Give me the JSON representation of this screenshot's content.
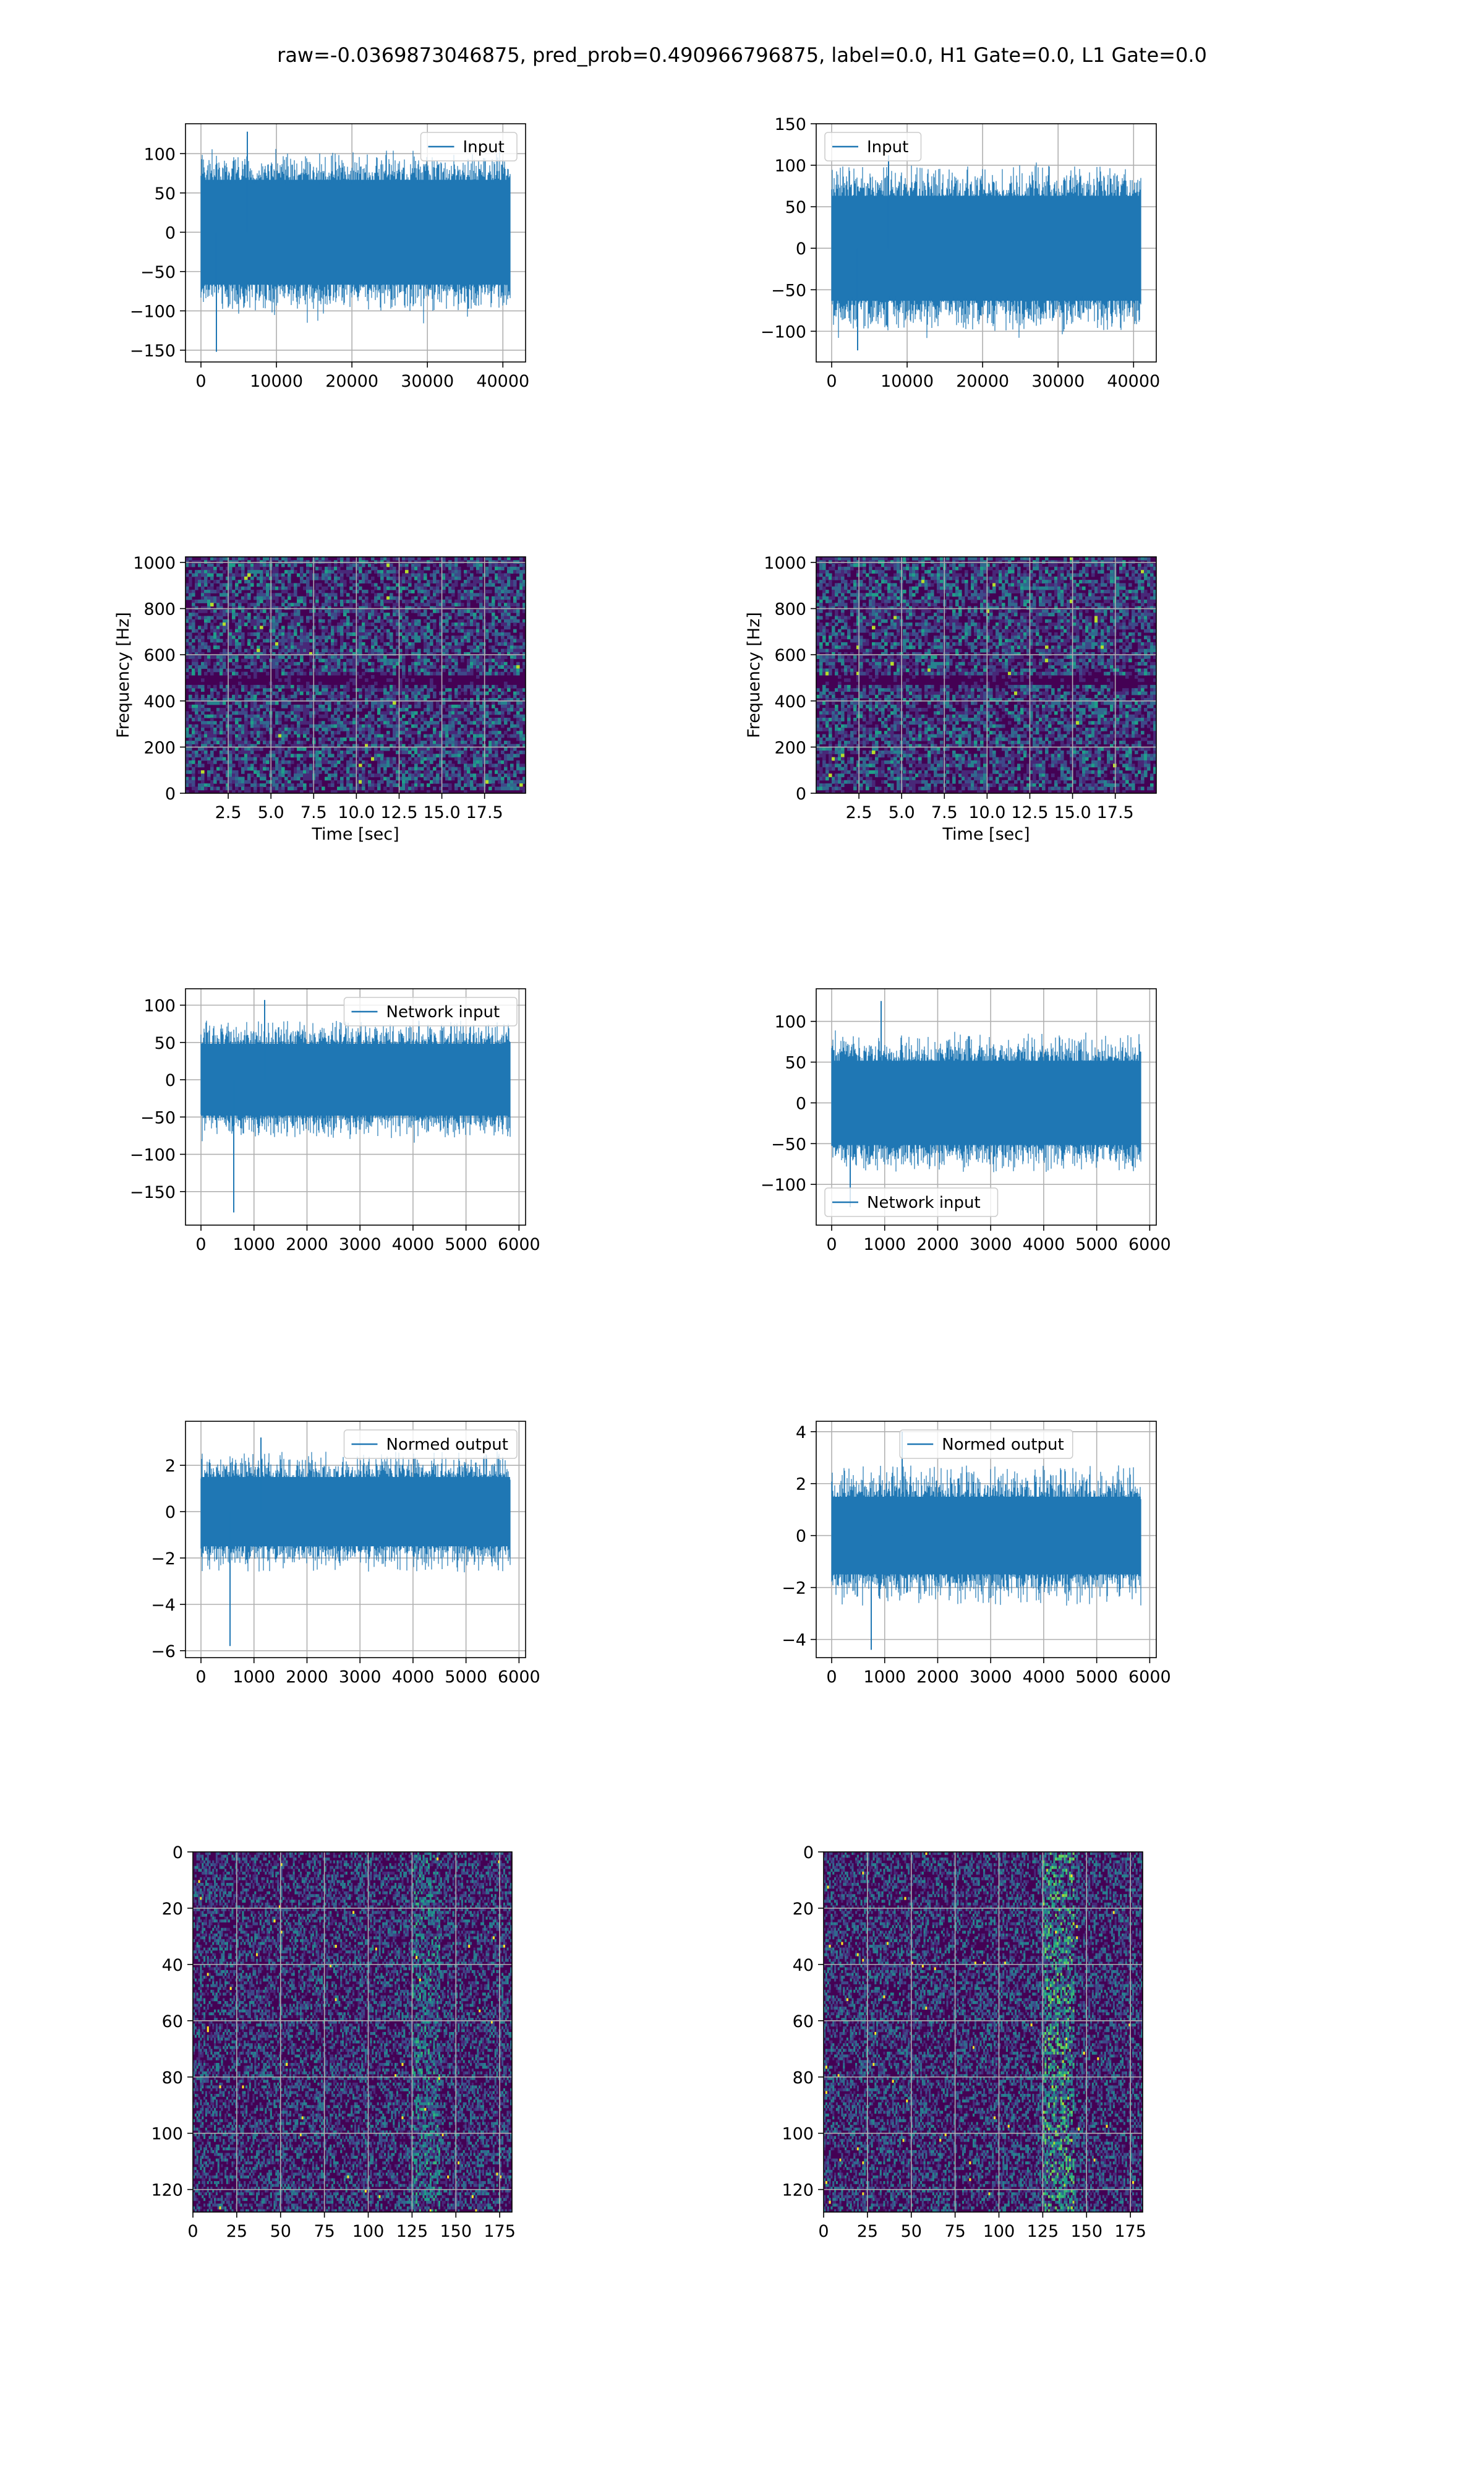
{
  "figure": {
    "suptitle": "raw=-0.0369873046875, pred_prob=0.490966796875, label=0.0, H1 Gate=0.0, L1 Gate=0.0",
    "line_color": "#1f77b4",
    "grid_color": "#b0b0b0",
    "viridis": [
      "#440154",
      "#482878",
      "#3e4989",
      "#31688e",
      "#26828e",
      "#1f9e89",
      "#35b779",
      "#6ece58",
      "#b5de2b",
      "#fde725"
    ]
  },
  "chart_data": [
    {
      "id": "input-left",
      "type": "line",
      "legend": "Input",
      "legend_loc": "upper right",
      "xlim": [
        -2048,
        43008
      ],
      "ylim": [
        -165,
        138
      ],
      "xticks": [
        0,
        10000,
        20000,
        30000,
        40000
      ],
      "yticks": [
        -150,
        -100,
        -50,
        0,
        50,
        100
      ],
      "series": [
        {
          "name": "Input",
          "x_range": [
            0,
            40959
          ],
          "body_amplitude": 58,
          "typical_peaks": [
            -100,
            100
          ],
          "extreme_peaks": [
            128,
            -152
          ]
        }
      ],
      "xlabel": "",
      "ylabel": ""
    },
    {
      "id": "input-right",
      "type": "line",
      "legend": "Input",
      "legend_loc": "upper left",
      "xlim": [
        -2048,
        43008
      ],
      "ylim": [
        -137,
        150
      ],
      "xticks": [
        0,
        10000,
        20000,
        30000,
        40000
      ],
      "yticks": [
        -100,
        -50,
        0,
        50,
        100,
        150
      ],
      "series": [
        {
          "name": "Input",
          "x_range": [
            0,
            40959
          ],
          "body_amplitude": 55,
          "typical_peaks": [
            -100,
            100
          ],
          "extreme_peaks": [
            112,
            -123
          ]
        }
      ],
      "xlabel": "",
      "ylabel": ""
    },
    {
      "id": "spectrogram-left",
      "type": "heatmap",
      "xlim": [
        0,
        19.9
      ],
      "ylim": [
        0,
        1024
      ],
      "xticks": [
        2.5,
        5.0,
        7.5,
        10.0,
        12.5,
        15.0,
        17.5
      ],
      "yticks": [
        0,
        200,
        400,
        600,
        800,
        1000
      ],
      "xlabel": "Time [sec]",
      "ylabel": "Frequency [Hz]",
      "dark_band_hz": 490
    },
    {
      "id": "spectrogram-right",
      "type": "heatmap",
      "xlim": [
        0,
        19.9
      ],
      "ylim": [
        0,
        1024
      ],
      "xticks": [
        2.5,
        5.0,
        7.5,
        10.0,
        12.5,
        15.0,
        17.5
      ],
      "yticks": [
        0,
        200,
        400,
        600,
        800,
        1000
      ],
      "xlabel": "Time [sec]",
      "ylabel": "Frequency [Hz]",
      "dark_band_hz": 490
    },
    {
      "id": "network-input-left",
      "type": "line",
      "legend": "Network input",
      "legend_loc": "upper right",
      "xlim": [
        -292,
        6124
      ],
      "ylim": [
        -195,
        122
      ],
      "xticks": [
        0,
        1000,
        2000,
        3000,
        4000,
        5000,
        6000
      ],
      "yticks": [
        -150,
        -100,
        -50,
        0,
        50,
        100
      ],
      "series": [
        {
          "name": "Network input",
          "x_range": [
            0,
            5831
          ],
          "body_amplitude": 42,
          "typical_peaks": [
            -80,
            80
          ],
          "extreme_peaks": [
            107,
            -178
          ]
        }
      ],
      "xlabel": "",
      "ylabel": ""
    },
    {
      "id": "network-input-right",
      "type": "line",
      "legend": "Network input",
      "legend_loc": "lower left",
      "xlim": [
        -292,
        6124
      ],
      "ylim": [
        -150,
        140
      ],
      "xticks": [
        0,
        1000,
        2000,
        3000,
        4000,
        5000,
        6000
      ],
      "yticks": [
        -100,
        -50,
        0,
        50,
        100
      ],
      "series": [
        {
          "name": "Network input",
          "x_range": [
            0,
            5831
          ],
          "body_amplitude": 45,
          "typical_peaks": [
            -85,
            85
          ],
          "extreme_peaks": [
            125,
            -128
          ]
        }
      ],
      "xlabel": "",
      "ylabel": ""
    },
    {
      "id": "normed-output-left",
      "type": "line",
      "legend": "Normed output",
      "legend_loc": "upper right",
      "xlim": [
        -292,
        6124
      ],
      "ylim": [
        -6.3,
        3.9
      ],
      "xticks": [
        0,
        1000,
        2000,
        3000,
        4000,
        5000,
        6000
      ],
      "yticks": [
        -6,
        -4,
        -2,
        0,
        2
      ],
      "series": [
        {
          "name": "Normed output",
          "x_range": [
            0,
            5831
          ],
          "body_amplitude": 1.3,
          "typical_peaks": [
            -2.6,
            2.6
          ],
          "extreme_peaks": [
            3.2,
            -5.8
          ]
        }
      ],
      "xlabel": "",
      "ylabel": ""
    },
    {
      "id": "normed-output-right",
      "type": "line",
      "legend": "Normed output",
      "legend_loc": "upper center",
      "xlim": [
        -292,
        6124
      ],
      "ylim": [
        -4.7,
        4.4
      ],
      "xticks": [
        0,
        1000,
        2000,
        3000,
        4000,
        5000,
        6000
      ],
      "yticks": [
        -4,
        -2,
        0,
        2,
        4
      ],
      "series": [
        {
          "name": "Normed output",
          "x_range": [
            0,
            5831
          ],
          "body_amplitude": 1.3,
          "typical_peaks": [
            -2.7,
            2.7
          ],
          "extreme_peaks": [
            4.0,
            -4.4
          ]
        }
      ],
      "xlabel": "",
      "ylabel": ""
    },
    {
      "id": "matrix-left",
      "type": "heatmap",
      "xlim": [
        0,
        182
      ],
      "ylim": [
        128,
        0
      ],
      "xticks": [
        0,
        25,
        50,
        75,
        100,
        125,
        150,
        175
      ],
      "yticks": [
        0,
        20,
        40,
        60,
        80,
        100,
        120
      ],
      "xlabel": "",
      "ylabel": "",
      "bright_column_range": [
        125,
        140
      ]
    },
    {
      "id": "matrix-right",
      "type": "heatmap",
      "xlim": [
        0,
        182
      ],
      "ylim": [
        128,
        0
      ],
      "xticks": [
        0,
        25,
        50,
        75,
        100,
        125,
        150,
        175
      ],
      "yticks": [
        0,
        20,
        40,
        60,
        80,
        100,
        120
      ],
      "xlabel": "",
      "ylabel": "",
      "bright_column_range": [
        125,
        142
      ]
    }
  ]
}
